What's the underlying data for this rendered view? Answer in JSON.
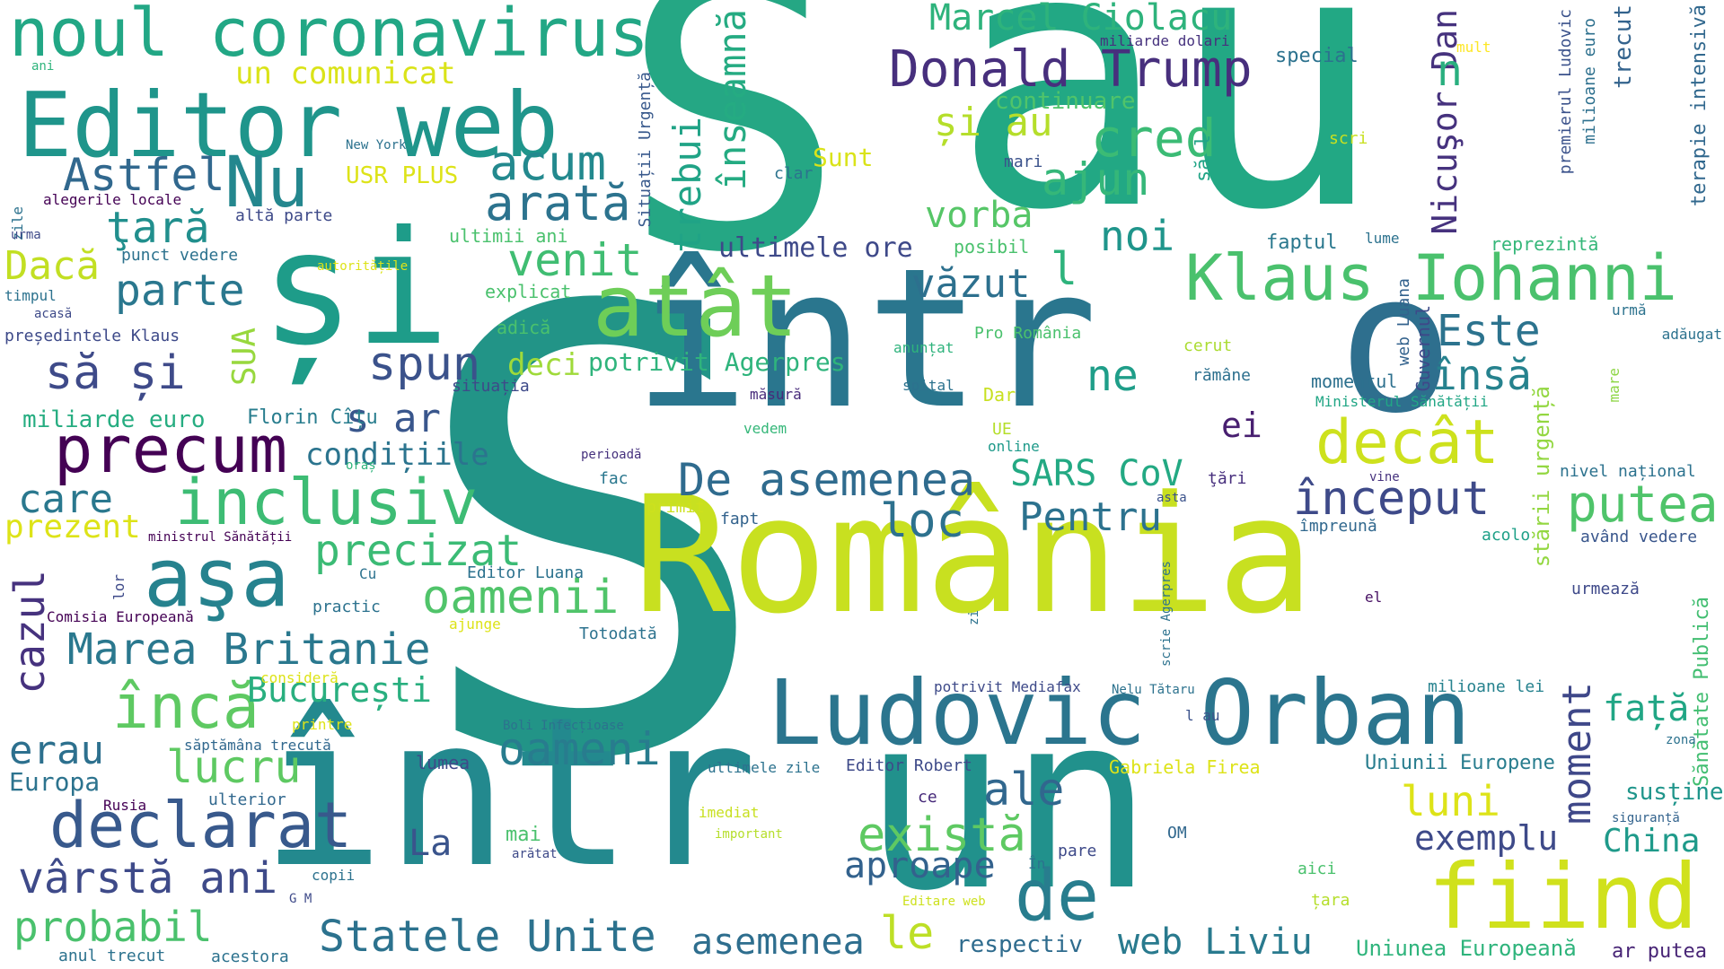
{
  "words": [
    {
      "id": "w0",
      "text": "S",
      "color": "#229487"
    },
    {
      "id": "w1",
      "text": "S",
      "color": "#25A784"
    },
    {
      "id": "w2",
      "text": "au",
      "color": "#22A884"
    },
    {
      "id": "w3",
      "text": "într",
      "color": "#23898E"
    },
    {
      "id": "w4",
      "text": "un",
      "color": "#21918C"
    },
    {
      "id": "w5",
      "text": "într",
      "color": "#2A768E"
    },
    {
      "id": "w6",
      "text": "o",
      "color": "#2E6F8E"
    },
    {
      "id": "w7",
      "text": "România",
      "color": "#C8E020"
    },
    {
      "id": "w8",
      "text": "și",
      "color": "#1E9C89"
    },
    {
      "id": "w9",
      "text": "noul coronavirus",
      "color": "#22A785"
    },
    {
      "id": "w10",
      "text": "Editor web",
      "color": "#1F958B"
    },
    {
      "id": "w11",
      "text": "Ludovic Orban",
      "color": "#2B758E"
    },
    {
      "id": "w12",
      "text": "atât",
      "color": "#6ECE58"
    },
    {
      "id": "w13",
      "text": "fiind",
      "color": "#D0E11C"
    },
    {
      "id": "w14",
      "text": "Klaus Iohanni",
      "color": "#4AC16D"
    },
    {
      "id": "w15",
      "text": "aşa",
      "color": "#26828E"
    },
    {
      "id": "w16",
      "text": "precum",
      "color": "#440154"
    },
    {
      "id": "w17",
      "text": "inclusiv",
      "color": "#3DBC74"
    },
    {
      "id": "w18",
      "text": "declarat",
      "color": "#38598C"
    },
    {
      "id": "w19",
      "text": "decât",
      "color": "#CDE11D"
    },
    {
      "id": "w20",
      "text": "putea",
      "color": "#4FC46A"
    },
    {
      "id": "w21",
      "text": "Nu",
      "color": "#24878E"
    },
    {
      "id": "w22",
      "text": "Donald Trump",
      "color": "#472F7D"
    },
    {
      "id": "w23",
      "text": "Marcel Ciolacu",
      "color": "#2EB37C"
    },
    {
      "id": "w24",
      "text": "Statele Unite",
      "color": "#2C728E"
    },
    {
      "id": "w25",
      "text": "Marea Britanie",
      "color": "#2A788E"
    },
    {
      "id": "w26",
      "text": "încă",
      "color": "#5EC962"
    },
    {
      "id": "w27",
      "text": "De asemenea",
      "color": "#2F6B8E"
    },
    {
      "id": "w28",
      "text": "vârstă ani",
      "color": "#3E4A89"
    },
    {
      "id": "w29",
      "text": "arată",
      "color": "#2C738E"
    },
    {
      "id": "w30",
      "text": "acum",
      "color": "#23898E"
    },
    {
      "id": "w31",
      "text": "cred",
      "color": "#3BBB75"
    },
    {
      "id": "w32",
      "text": "Astfel",
      "color": "#31688E"
    },
    {
      "id": "w33",
      "text": "ţară",
      "color": "#218F8D"
    },
    {
      "id": "w34",
      "text": "parte",
      "color": "#2A778E"
    },
    {
      "id": "w35",
      "text": "Dacă",
      "color": "#C2DF23"
    },
    {
      "id": "w36",
      "text": "să și",
      "color": "#3E4A89"
    },
    {
      "id": "w37",
      "text": "spun",
      "color": "#3B528B"
    },
    {
      "id": "w38",
      "text": "venit",
      "color": "#40BD72"
    },
    {
      "id": "w39",
      "text": "trebui",
      "color": "#20A386"
    },
    {
      "id": "w40",
      "text": "înseamnă",
      "color": "#25AB82"
    },
    {
      "id": "w41",
      "text": "ajun",
      "color": "#35B779"
    },
    {
      "id": "w42",
      "text": "și au",
      "color": "#B5DE2B"
    },
    {
      "id": "w43",
      "text": "noi",
      "color": "#1F958B"
    },
    {
      "id": "w44",
      "text": "vorba",
      "color": "#56C667"
    },
    {
      "id": "w45",
      "text": "ultimele ore",
      "color": "#3E4989"
    },
    {
      "id": "w46",
      "text": "văzut",
      "color": "#2D708E"
    },
    {
      "id": "w47",
      "text": "l",
      "color": "#2EB37C"
    },
    {
      "id": "w48",
      "text": "Este",
      "color": "#2C738E"
    },
    {
      "id": "w49",
      "text": "însă",
      "color": "#26828E"
    },
    {
      "id": "w50",
      "text": "ne",
      "color": "#1F9E89"
    },
    {
      "id": "w51",
      "text": "ei",
      "color": "#481F70"
    },
    {
      "id": "w52",
      "text": "început",
      "color": "#3E4A89"
    },
    {
      "id": "w53",
      "text": "loc",
      "color": "#2D718E"
    },
    {
      "id": "w54",
      "text": "Pentru",
      "color": "#2C728E"
    },
    {
      "id": "w55",
      "text": "SARS CoV",
      "color": "#23A983"
    },
    {
      "id": "w56",
      "text": "precizat",
      "color": "#3BBB75"
    },
    {
      "id": "w57",
      "text": "oamenii",
      "color": "#50C46A"
    },
    {
      "id": "w58",
      "text": "oameni",
      "color": "#287C8E"
    },
    {
      "id": "w59",
      "text": "care",
      "color": "#2A788E"
    },
    {
      "id": "w60",
      "text": "prezent",
      "color": "#DDE318"
    },
    {
      "id": "w61",
      "text": "cazul",
      "color": "#46327E"
    },
    {
      "id": "w62",
      "text": "București",
      "color": "#29AF7F"
    },
    {
      "id": "w63",
      "text": "condițiile",
      "color": "#2B748E"
    },
    {
      "id": "w64",
      "text": "s ar",
      "color": "#39568C"
    },
    {
      "id": "w65",
      "text": "deci",
      "color": "#9FDA3A"
    },
    {
      "id": "w66",
      "text": "potrivit Agerpres",
      "color": "#2FB47C"
    },
    {
      "id": "w67",
      "text": "SUA",
      "color": "#98D83E"
    },
    {
      "id": "w68",
      "text": "miliarde euro",
      "color": "#26AD81"
    },
    {
      "id": "w69",
      "text": "Florin Cîțu",
      "color": "#287D8E"
    },
    {
      "id": "w70",
      "text": "erau",
      "color": "#2D708E"
    },
    {
      "id": "w71",
      "text": "lucru",
      "color": "#5EC962"
    },
    {
      "id": "w72",
      "text": "Europa",
      "color": "#2C738E"
    },
    {
      "id": "w73",
      "text": "ale",
      "color": "#31678E"
    },
    {
      "id": "w74",
      "text": "La",
      "color": "#3A548C"
    },
    {
      "id": "w75",
      "text": "există",
      "color": "#5EC962"
    },
    {
      "id": "w76",
      "text": "aproape",
      "color": "#33628D"
    },
    {
      "id": "w77",
      "text": "de",
      "color": "#287D8E"
    },
    {
      "id": "w78",
      "text": "le",
      "color": "#BDDF26"
    },
    {
      "id": "w79",
      "text": "asemenea",
      "color": "#2E6E8E"
    },
    {
      "id": "w80",
      "text": "web Liviu",
      "color": "#297A8E"
    },
    {
      "id": "w81",
      "text": "probabil",
      "color": "#4AC16D"
    },
    {
      "id": "w82",
      "text": "moment",
      "color": "#3F4889"
    },
    {
      "id": "w83",
      "text": "față",
      "color": "#21A685"
    },
    {
      "id": "w84",
      "text": "luni",
      "color": "#DDE318"
    },
    {
      "id": "w85",
      "text": "exemplu",
      "color": "#3E4A89"
    },
    {
      "id": "w86",
      "text": "China",
      "color": "#1F9A8A"
    },
    {
      "id": "w87",
      "text": "Nicuşor Dan",
      "color": "#46327E"
    },
    {
      "id": "w88",
      "text": "n",
      "color": "#29AF7F"
    },
    {
      "id": "w89",
      "text": "un comunicat",
      "color": "#DAE319"
    },
    {
      "id": "w90",
      "text": "stării urgență",
      "color": "#93D741"
    },
    {
      "id": "w91",
      "text": "susține",
      "color": "#1F958B"
    },
    {
      "id": "w92",
      "text": "Uniunii Europene",
      "color": "#287D8E"
    },
    {
      "id": "w93",
      "text": "Uniunea Europeană",
      "color": "#2FB47C"
    },
    {
      "id": "w94",
      "text": "respectiv",
      "color": "#2F6C8E"
    },
    {
      "id": "w95",
      "text": "ar putea",
      "color": "#482576"
    },
    {
      "id": "w96",
      "text": "Sănătate Publică",
      "color": "#42BE71"
    },
    {
      "id": "w97",
      "text": "terapie intensivă",
      "color": "#31688E"
    },
    {
      "id": "w98",
      "text": "trecut",
      "color": "#33638D"
    },
    {
      "id": "w99",
      "text": "premierul Ludovic",
      "color": "#3B528B"
    },
    {
      "id": "w100",
      "text": "milioane euro",
      "color": "#2D708E"
    },
    {
      "id": "w101",
      "text": "special",
      "color": "#2C728E"
    },
    {
      "id": "w102",
      "text": "mult",
      "color": "#FDE725"
    },
    {
      "id": "w103",
      "text": "miliarde dolari",
      "color": "#46327E"
    },
    {
      "id": "w104",
      "text": "continuare",
      "color": "#50C46A"
    },
    {
      "id": "w105",
      "text": "Sunt",
      "color": "#DAE319"
    },
    {
      "id": "w106",
      "text": "clar",
      "color": "#2C738E"
    },
    {
      "id": "w107",
      "text": "mari",
      "color": "#3B528B"
    },
    {
      "id": "w108",
      "text": "scri",
      "color": "#C8E020"
    },
    {
      "id": "w109",
      "text": "să l",
      "color": "#20A486"
    },
    {
      "id": "w110",
      "text": "Situații Urgență",
      "color": "#38598C"
    },
    {
      "id": "w111",
      "text": "faptul",
      "color": "#2A788E"
    },
    {
      "id": "w112",
      "text": "lume",
      "color": "#2C728E"
    },
    {
      "id": "w113",
      "text": "reprezintă",
      "color": "#35B779"
    },
    {
      "id": "w114",
      "text": "posibil",
      "color": "#4AC16D"
    },
    {
      "id": "w115",
      "text": "urmă",
      "color": "#2C728E"
    },
    {
      "id": "w116",
      "text": "Pro România",
      "color": "#4AC16D"
    },
    {
      "id": "w117",
      "text": "anunțat",
      "color": "#2EB37C"
    },
    {
      "id": "w118",
      "text": "cerut",
      "color": "#ABDC32"
    },
    {
      "id": "w119",
      "text": "rămâne",
      "color": "#2D708E"
    },
    {
      "id": "w120",
      "text": "spital",
      "color": "#2C728E"
    },
    {
      "id": "w121",
      "text": "momentul",
      "color": "#2D708E"
    },
    {
      "id": "w122",
      "text": "Guvernul",
      "color": "#3E4989"
    },
    {
      "id": "w123",
      "text": "web Luana",
      "color": "#33628D"
    },
    {
      "id": "w124",
      "text": "Ministerul Sănătății",
      "color": "#21A685"
    },
    {
      "id": "w125",
      "text": "adăugat",
      "color": "#2C728E"
    },
    {
      "id": "w126",
      "text": "mare",
      "color": "#8ED645"
    },
    {
      "id": "w127",
      "text": "Dar",
      "color": "#C8E020"
    },
    {
      "id": "w128",
      "text": "UE",
      "color": "#B5DE2B"
    },
    {
      "id": "w129",
      "text": "online",
      "color": "#1F9A8A"
    },
    {
      "id": "w130",
      "text": "măsură",
      "color": "#472A7A"
    },
    {
      "id": "w131",
      "text": "vedem",
      "color": "#35B779"
    },
    {
      "id": "w132",
      "text": "perioadă",
      "color": "#46327E"
    },
    {
      "id": "w133",
      "text": "fac",
      "color": "#2A778E"
    },
    {
      "id": "w134",
      "text": "primit",
      "color": "#CDE11D"
    },
    {
      "id": "w135",
      "text": "fapt",
      "color": "#33638D"
    },
    {
      "id": "w136",
      "text": "asta",
      "color": "#3B528B"
    },
    {
      "id": "w137",
      "text": "ţări",
      "color": "#472F7D"
    },
    {
      "id": "w138",
      "text": "vine",
      "color": "#46327E"
    },
    {
      "id": "w139",
      "text": "nivel național",
      "color": "#2C728E"
    },
    {
      "id": "w140",
      "text": "împreună",
      "color": "#31688E"
    },
    {
      "id": "w141",
      "text": "acolo",
      "color": "#1FA088"
    },
    {
      "id": "w142",
      "text": "având vedere",
      "color": "#39568C"
    },
    {
      "id": "w143",
      "text": "urmează",
      "color": "#3E4989"
    },
    {
      "id": "w144",
      "text": "el",
      "color": "#471063"
    },
    {
      "id": "w145",
      "text": "scrie Agerpres",
      "color": "#2C728E"
    },
    {
      "id": "w146",
      "text": "zi",
      "color": "#2C728E"
    },
    {
      "id": "w147",
      "text": "potrivit Mediafax",
      "color": "#3E4A89"
    },
    {
      "id": "w148",
      "text": "Nelu Tătaru",
      "color": "#2C728E"
    },
    {
      "id": "w149",
      "text": "l au",
      "color": "#3B528B"
    },
    {
      "id": "w150",
      "text": "milioane lei",
      "color": "#26828E"
    },
    {
      "id": "w151",
      "text": "zona",
      "color": "#2C728E"
    },
    {
      "id": "w152",
      "text": "siguranță",
      "color": "#33638D"
    },
    {
      "id": "w153",
      "text": "Gabriela Firea",
      "color": "#DDE318"
    },
    {
      "id": "w154",
      "text": "Editor Robert",
      "color": "#3E4A89"
    },
    {
      "id": "w155",
      "text": "ultimele zile",
      "color": "#2C728E"
    },
    {
      "id": "w156",
      "text": "ce",
      "color": "#472A7A"
    },
    {
      "id": "w157",
      "text": "imediat",
      "color": "#C8E020"
    },
    {
      "id": "w158",
      "text": "important",
      "color": "#B5DE2B"
    },
    {
      "id": "w159",
      "text": "OM",
      "color": "#31688E"
    },
    {
      "id": "w160",
      "text": "pare",
      "color": "#3E4A89"
    },
    {
      "id": "w161",
      "text": "În",
      "color": "#2C728E"
    },
    {
      "id": "w162",
      "text": "aici",
      "color": "#4AC16D"
    },
    {
      "id": "w163",
      "text": "țara",
      "color": "#B5DE2B"
    },
    {
      "id": "w164",
      "text": "Editare web",
      "color": "#CDE11D"
    },
    {
      "id": "w165",
      "text": "Boli Infecțioase",
      "color": "#2C728E"
    },
    {
      "id": "w166",
      "text": "Editor Luana",
      "color": "#2C728E"
    },
    {
      "id": "w167",
      "text": "Totodată",
      "color": "#2C728E"
    },
    {
      "id": "w168",
      "text": "Cu",
      "color": "#2C728E"
    },
    {
      "id": "w169",
      "text": "practic",
      "color": "#2C728E"
    },
    {
      "id": "w170",
      "text": "ajunge",
      "color": "#DDE318"
    },
    {
      "id": "w171",
      "text": "lumea",
      "color": "#3E4A89"
    },
    {
      "id": "w172",
      "text": "consideră",
      "color": "#DDE318"
    },
    {
      "id": "w173",
      "text": "printre",
      "color": "#DDE318"
    },
    {
      "id": "w174",
      "text": "săptămâna trecută",
      "color": "#31688E"
    },
    {
      "id": "w175",
      "text": "ulterior",
      "color": "#31688E"
    },
    {
      "id": "w176",
      "text": "Rusia",
      "color": "#440154"
    },
    {
      "id": "w177",
      "text": "mai",
      "color": "#4AC16D"
    },
    {
      "id": "w178",
      "text": "arătat",
      "color": "#3E4A89"
    },
    {
      "id": "w179",
      "text": "copii",
      "color": "#2C728E"
    },
    {
      "id": "w180",
      "text": "G M",
      "color": "#3E4A89"
    },
    {
      "id": "w181",
      "text": "anul trecut",
      "color": "#2C728E"
    },
    {
      "id": "w182",
      "text": "acestora",
      "color": "#2C728E"
    },
    {
      "id": "w183",
      "text": "Comisia Europeană",
      "color": "#440154"
    },
    {
      "id": "w184",
      "text": "lor",
      "color": "#3E4A89"
    },
    {
      "id": "w185",
      "text": "ministrul Sănătății",
      "color": "#440154"
    },
    {
      "id": "w186",
      "text": "oraș",
      "color": "#2FB47C"
    },
    {
      "id": "w187",
      "text": "situația",
      "color": "#3E4A89"
    },
    {
      "id": "w188",
      "text": "adică",
      "color": "#4AC16D"
    },
    {
      "id": "w189",
      "text": "explicat",
      "color": "#4AC16D"
    },
    {
      "id": "w190",
      "text": "autoritățile",
      "color": "#DDE318"
    },
    {
      "id": "w191",
      "text": "ultimii ani",
      "color": "#4AC16D"
    },
    {
      "id": "w192",
      "text": "altă parte",
      "color": "#3E4A89"
    },
    {
      "id": "w193",
      "text": "punct vedere",
      "color": "#2C728E"
    },
    {
      "id": "w194",
      "text": "alegerile locale",
      "color": "#440154"
    },
    {
      "id": "w195",
      "text": "zile",
      "color": "#2C728E"
    },
    {
      "id": "w196",
      "text": "urma",
      "color": "#3E4A89"
    },
    {
      "id": "w197",
      "text": "timpul",
      "color": "#2C728E"
    },
    {
      "id": "w198",
      "text": "președintele Klaus",
      "color": "#3E4A89"
    },
    {
      "id": "w199",
      "text": "acasă",
      "color": "#3E4A89"
    },
    {
      "id": "w200",
      "text": "USR PLUS",
      "color": "#DDE318"
    },
    {
      "id": "w201",
      "text": "New York",
      "color": "#2C728E"
    },
    {
      "id": "w202",
      "text": "ani",
      "color": "#2FB47C"
    }
  ]
}
